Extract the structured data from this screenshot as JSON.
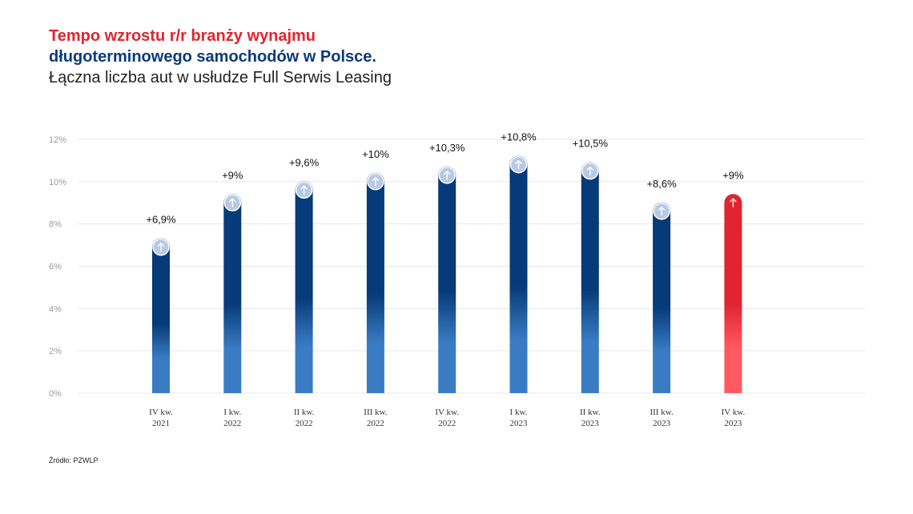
{
  "header": {
    "title_line1": "Tempo wzrostu r/r branży wynajmu",
    "title_line2": "długoterminowego samochodów w Polsce.",
    "subtitle": "Łączna liczba aut w usłudze Full Serwis Leasing"
  },
  "footer": {
    "source": "Źródło: PZWLP"
  },
  "colors": {
    "title_red": "#e3232e",
    "title_blue": "#0b3a7a",
    "bar_dark": "#063a78",
    "bar_light": "#3a7cc4",
    "highlight_dark": "#e02430",
    "highlight_light": "#ff5a63",
    "gridline": "#e6e6e6",
    "axis_text": "#9a9a9a"
  },
  "chart_data": {
    "type": "bar",
    "categories": [
      [
        "IV kw.",
        "2021"
      ],
      [
        "I kw.",
        "2022"
      ],
      [
        "II kw.",
        "2022"
      ],
      [
        "III kw.",
        "2022"
      ],
      [
        "IV kw.",
        "2022"
      ],
      [
        "I kw.",
        "2023"
      ],
      [
        "II kw.",
        "2023"
      ],
      [
        "III kw.",
        "2023"
      ],
      [
        "IV kw.",
        "2023"
      ]
    ],
    "values": [
      6.9,
      9,
      9.6,
      10,
      10.3,
      10.8,
      10.5,
      8.6,
      9
    ],
    "data_labels": [
      "+6,9%",
      "+9%",
      "+9,6%",
      "+10%",
      "+10,3%",
      "+10,8%",
      "+10,5%",
      "+8,6%",
      "+9%"
    ],
    "highlight_index": 8,
    "marker_icon": "arrow-up-icon",
    "y_ticks": [
      0,
      2,
      4,
      6,
      8,
      10,
      12
    ],
    "y_tick_labels": [
      "0%",
      "2%",
      "4%",
      "6%",
      "8%",
      "10%",
      "12%"
    ],
    "ylim": [
      0,
      12
    ],
    "grid": true,
    "legend": "none"
  }
}
